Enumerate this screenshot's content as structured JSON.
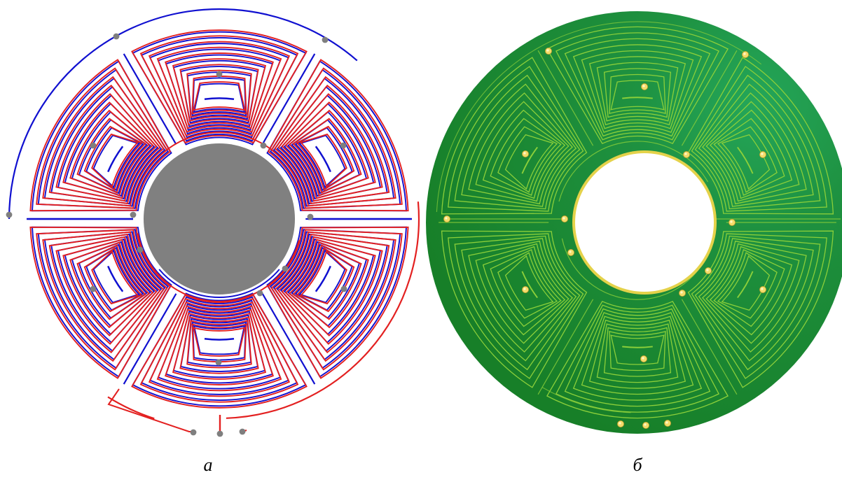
{
  "panels": [
    {
      "id": "a",
      "caption": "а",
      "colors": {
        "trace_top": "#e32020",
        "trace_bottom": "#1010d0",
        "via": "#7f7f7f",
        "hub": "#808080",
        "background": "#ffffff"
      },
      "icon": "pcb-coil-schematic"
    },
    {
      "id": "b",
      "caption": "б",
      "colors": {
        "board": "#1f8a2e",
        "trace": "#8bcf3a",
        "via": "#f3dc6a",
        "hole_rim": "#e4d24a",
        "background": "#ffffff"
      },
      "icon": "pcb-coil-board-render"
    }
  ],
  "coil_count": 6,
  "turns_per_coil": 10
}
